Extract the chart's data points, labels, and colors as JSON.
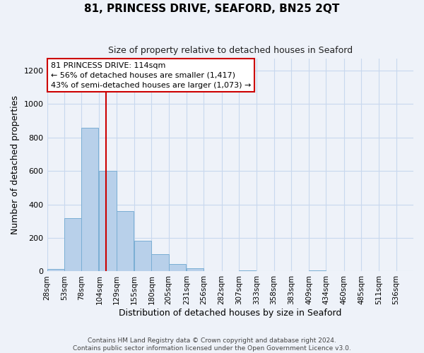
{
  "title": "81, PRINCESS DRIVE, SEAFORD, BN25 2QT",
  "subtitle": "Size of property relative to detached houses in Seaford",
  "xlabel": "Distribution of detached houses by size in Seaford",
  "ylabel": "Number of detached properties",
  "bar_color": "#b8d0ea",
  "bar_edge_color": "#7aaed4",
  "background_color": "#eef2f9",
  "grid_color": "#c8d8ee",
  "bin_labels": [
    "28sqm",
    "53sqm",
    "78sqm",
    "104sqm",
    "129sqm",
    "155sqm",
    "180sqm",
    "205sqm",
    "231sqm",
    "256sqm",
    "282sqm",
    "307sqm",
    "333sqm",
    "358sqm",
    "383sqm",
    "409sqm",
    "434sqm",
    "460sqm",
    "485sqm",
    "511sqm",
    "536sqm"
  ],
  "bin_edges": [
    28,
    53,
    78,
    104,
    129,
    155,
    180,
    205,
    231,
    256,
    282,
    307,
    333,
    358,
    383,
    409,
    434,
    460,
    485,
    511,
    536
  ],
  "bin_width": 25,
  "bar_heights": [
    15,
    320,
    860,
    600,
    360,
    185,
    105,
    45,
    20,
    0,
    0,
    5,
    0,
    0,
    0,
    5,
    0,
    0,
    0,
    0,
    0
  ],
  "vline_x": 114,
  "vline_color": "#cc0000",
  "annotation_title": "81 PRINCESS DRIVE: 114sqm",
  "annotation_line1": "← 56% of detached houses are smaller (1,417)",
  "annotation_line2": "43% of semi-detached houses are larger (1,073) →",
  "annotation_box_color": "#ffffff",
  "annotation_box_edge": "#cc0000",
  "ylim": [
    0,
    1270
  ],
  "yticks": [
    0,
    200,
    400,
    600,
    800,
    1000,
    1200
  ],
  "footnote1": "Contains HM Land Registry data © Crown copyright and database right 2024.",
  "footnote2": "Contains public sector information licensed under the Open Government Licence v3.0."
}
